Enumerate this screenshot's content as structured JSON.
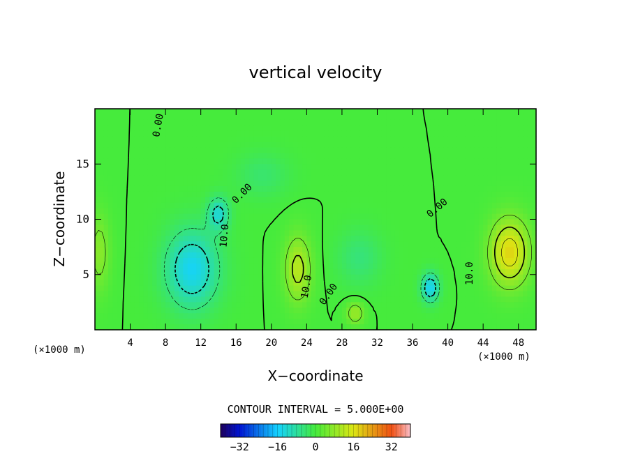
{
  "chart_data": {
    "type": "heatmap",
    "title": "vertical velocity",
    "xlabel": "X−coordinate",
    "ylabel": "Z−coordinate",
    "x_unit_left": "(×1000 m)",
    "x_unit_right": "(×1000 m)",
    "xlim": [
      0,
      50
    ],
    "ylim": [
      0,
      20
    ],
    "x_ticks": [
      4,
      8,
      12,
      16,
      20,
      24,
      28,
      32,
      36,
      40,
      44,
      48
    ],
    "y_ticks": [
      5,
      10,
      15
    ],
    "contour_interval_text": "CONTOUR INTERVAL = 5.000E+00",
    "colorbar": {
      "range": [
        -40,
        40
      ],
      "ticks": [
        -32,
        -16,
        0,
        16,
        32
      ],
      "tick_labels": [
        "−32",
        "−16",
        "0",
        "16",
        "32"
      ]
    },
    "contour_labels": [
      {
        "text": "0.00",
        "x": 7.2,
        "y": 18.5,
        "angle": -80
      },
      {
        "text": "0.00",
        "x": 16.7,
        "y": 12.3,
        "angle": -45
      },
      {
        "text": "10.0",
        "x": 14.7,
        "y": 8.5,
        "angle": -85
      },
      {
        "text": "10.0",
        "x": 24.0,
        "y": 3.9,
        "angle": -80
      },
      {
        "text": "0.00",
        "x": 26.5,
        "y": 3.2,
        "angle": -55
      },
      {
        "text": "0.00",
        "x": 38.8,
        "y": 11.0,
        "angle": -40
      },
      {
        "text": "10.0",
        "x": 42.5,
        "y": 5.1,
        "angle": -90
      }
    ],
    "features": [
      {
        "kind": "min",
        "x": 11.0,
        "y": 5.5,
        "value_approx": -15,
        "sx": 3.0,
        "sy": 3.5
      },
      {
        "kind": "min",
        "x": 14.0,
        "y": 10.5,
        "value_approx": -12,
        "sx": 1.2,
        "sy": 1.5
      },
      {
        "kind": "min",
        "x": 38.0,
        "y": 3.8,
        "value_approx": -15,
        "sx": 1.0,
        "sy": 1.3
      },
      {
        "kind": "min",
        "x": 30.0,
        "y": 6.5,
        "value_approx": -5,
        "sx": 2.5,
        "sy": 2.5
      },
      {
        "kind": "min",
        "x": 19.0,
        "y": 14.0,
        "value_approx": -4,
        "sx": 3.0,
        "sy": 2.0
      },
      {
        "kind": "max",
        "x": 23.0,
        "y": 5.5,
        "value_approx": 12,
        "sx": 1.5,
        "sy": 3.0
      },
      {
        "kind": "max",
        "x": 29.5,
        "y": 1.5,
        "value_approx": 9,
        "sx": 1.0,
        "sy": 1.0
      },
      {
        "kind": "max",
        "x": 47.0,
        "y": 7.0,
        "value_approx": 18,
        "sx": 2.2,
        "sy": 3.0
      },
      {
        "kind": "max",
        "x": 0.5,
        "y": 7.0,
        "value_approx": 7,
        "sx": 1.2,
        "sy": 3.5
      }
    ]
  }
}
